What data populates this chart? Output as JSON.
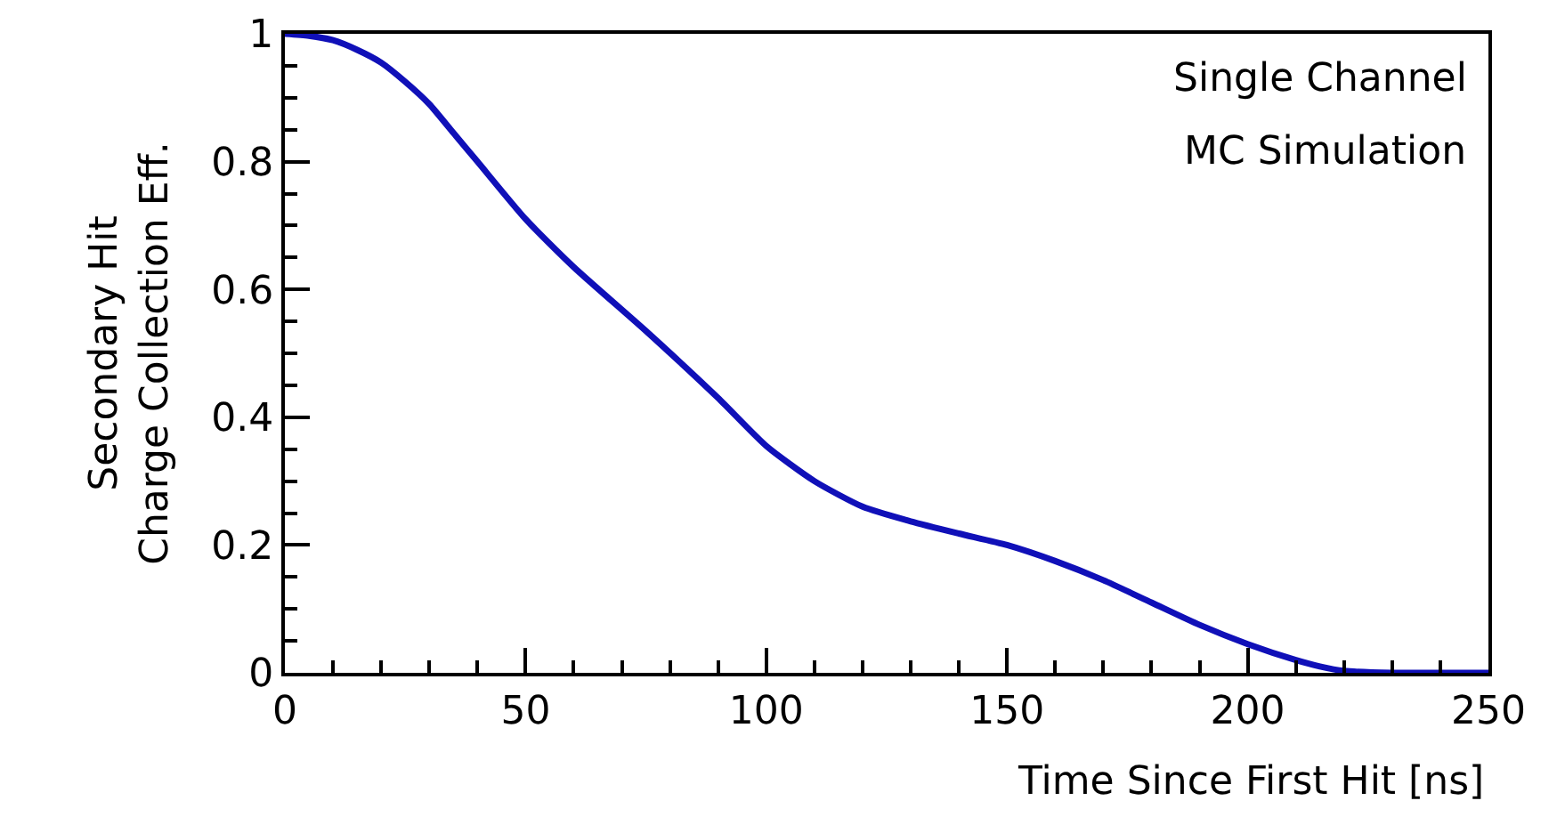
{
  "chart_data": {
    "type": "line",
    "xlabel": "Time Since First Hit [ns]",
    "ylabel": "Secondary Hit\nCharge Collection Eff.",
    "annotations": [
      "Single Channel",
      "MC Simulation"
    ],
    "series": [
      {
        "color": "#1010b8",
        "x": [
          0,
          5,
          10,
          15,
          20,
          25,
          30,
          35,
          40,
          50,
          60,
          75,
          90,
          100,
          110,
          120,
          130,
          140,
          150,
          160,
          170,
          180,
          190,
          200,
          210,
          215,
          220,
          230,
          240,
          250
        ],
        "values": [
          1,
          0.997,
          0.99,
          0.975,
          0.955,
          0.925,
          0.89,
          0.845,
          0.8,
          0.71,
          0.635,
          0.535,
          0.43,
          0.355,
          0.3,
          0.26,
          0.237,
          0.218,
          0.2,
          0.175,
          0.145,
          0.11,
          0.075,
          0.045,
          0.02,
          0.01,
          0.003,
          0,
          0,
          0
        ]
      }
    ],
    "xlim": [
      0,
      250
    ],
    "xticks": [
      0,
      50,
      100,
      150,
      200,
      250
    ],
    "ylim": [
      0,
      1
    ],
    "yticks": [
      0,
      0.2,
      0.4,
      0.6,
      0.8,
      1
    ],
    "grid": false,
    "marker": "none",
    "line_style": "solid"
  }
}
